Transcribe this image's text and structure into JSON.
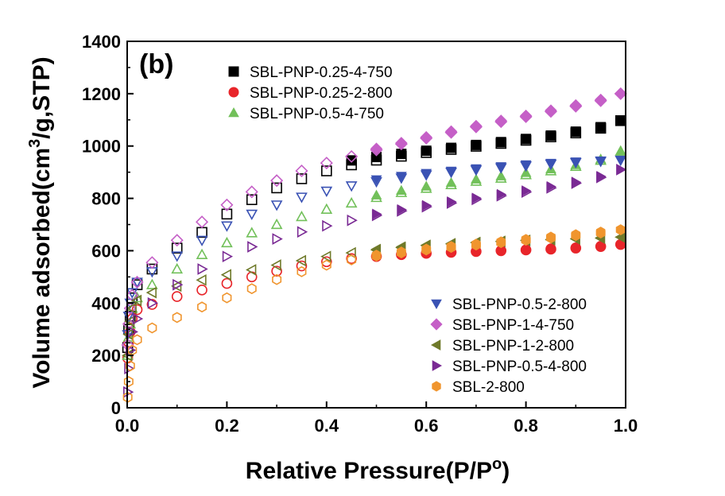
{
  "chart_data": {
    "type": "scatter",
    "panel_label": "(b)",
    "xlabel": "Relative Pressure(P/P°)",
    "xlabel_main": "Relative Pressure(P/P",
    "xlabel_sup": "o",
    "xlabel_tail": ")",
    "ylabel": "Volume adsorbed(cm3/g,STP)",
    "ylabel_main": "Volume adsorbed(cm",
    "ylabel_sup": "3",
    "ylabel_tail": "/g,STP)",
    "xlim": [
      0.0,
      1.0
    ],
    "ylim": [
      0,
      1400
    ],
    "x_ticks": [
      "0.0",
      "0.2",
      "0.4",
      "0.6",
      "0.8",
      "1.0"
    ],
    "y_ticks": [
      "0",
      "200",
      "400",
      "600",
      "800",
      "1000",
      "1200",
      "1400"
    ],
    "grid": false,
    "legend": [
      {
        "placement": "top-left",
        "entries": [
          "SBL-PNP-0.25-4-750",
          "SBL-PNP-0.25-2-800",
          "SBL-PNP-0.5-4-750"
        ]
      },
      {
        "placement": "bottom-right",
        "entries": [
          "SBL-PNP-0.5-2-800",
          "SBL-PNP-1-4-750",
          "SBL-PNP-1-2-800",
          "SBL-PNP-0.5-4-800",
          "SBL-2-800"
        ]
      }
    ],
    "series": [
      {
        "name": "SBL-PNP-0.25-4-750",
        "marker": "square",
        "color": "#000000",
        "adsorption": [
          [
            0.001,
            230
          ],
          [
            0.003,
            300
          ],
          [
            0.006,
            350
          ],
          [
            0.01,
            420
          ],
          [
            0.02,
            470
          ],
          [
            0.05,
            530
          ],
          [
            0.1,
            610
          ],
          [
            0.15,
            670
          ],
          [
            0.2,
            740
          ],
          [
            0.25,
            795
          ],
          [
            0.3,
            840
          ],
          [
            0.35,
            875
          ],
          [
            0.4,
            905
          ],
          [
            0.45,
            928
          ],
          [
            0.5,
            946
          ],
          [
            0.55,
            961
          ],
          [
            0.6,
            975
          ],
          [
            0.65,
            987
          ],
          [
            0.7,
            999
          ],
          [
            0.75,
            1010
          ],
          [
            0.8,
            1022
          ],
          [
            0.85,
            1035
          ],
          [
            0.9,
            1050
          ],
          [
            0.95,
            1068
          ],
          [
            0.99,
            1097
          ]
        ],
        "desorption": [
          [
            0.99,
            1097
          ],
          [
            0.95,
            1072
          ],
          [
            0.9,
            1055
          ],
          [
            0.85,
            1040
          ],
          [
            0.8,
            1027
          ],
          [
            0.75,
            1015
          ],
          [
            0.7,
            1004
          ],
          [
            0.65,
            993
          ],
          [
            0.6,
            982
          ],
          [
            0.55,
            970
          ],
          [
            0.5,
            958
          ],
          [
            0.45,
            945
          ]
        ]
      },
      {
        "name": "SBL-PNP-0.25-2-800",
        "marker": "circle",
        "color": "#e8252a",
        "adsorption": [
          [
            0.001,
            190
          ],
          [
            0.003,
            250
          ],
          [
            0.006,
            290
          ],
          [
            0.01,
            340
          ],
          [
            0.02,
            375
          ],
          [
            0.05,
            395
          ],
          [
            0.1,
            425
          ],
          [
            0.15,
            450
          ],
          [
            0.2,
            475
          ],
          [
            0.25,
            500
          ],
          [
            0.3,
            522
          ],
          [
            0.35,
            542
          ],
          [
            0.4,
            558
          ],
          [
            0.45,
            570
          ],
          [
            0.5,
            578
          ],
          [
            0.55,
            585
          ],
          [
            0.6,
            590
          ],
          [
            0.65,
            594
          ],
          [
            0.7,
            597
          ],
          [
            0.75,
            600
          ],
          [
            0.8,
            603
          ],
          [
            0.85,
            606
          ],
          [
            0.9,
            610
          ],
          [
            0.95,
            616
          ],
          [
            0.99,
            624
          ]
        ],
        "desorption": [
          [
            0.99,
            624
          ],
          [
            0.95,
            618
          ],
          [
            0.9,
            612
          ],
          [
            0.85,
            608
          ],
          [
            0.8,
            604
          ],
          [
            0.75,
            601
          ],
          [
            0.7,
            598
          ],
          [
            0.65,
            595
          ],
          [
            0.6,
            591
          ],
          [
            0.55,
            586
          ],
          [
            0.5,
            580
          ]
        ]
      },
      {
        "name": "SBL-PNP-0.5-4-750",
        "marker": "triangle-up",
        "color": "#72c05a",
        "adsorption": [
          [
            0.001,
            200
          ],
          [
            0.003,
            270
          ],
          [
            0.006,
            320
          ],
          [
            0.01,
            380
          ],
          [
            0.02,
            420
          ],
          [
            0.05,
            470
          ],
          [
            0.1,
            530
          ],
          [
            0.15,
            585
          ],
          [
            0.2,
            630
          ],
          [
            0.25,
            668
          ],
          [
            0.3,
            700
          ],
          [
            0.35,
            730
          ],
          [
            0.4,
            758
          ],
          [
            0.45,
            782
          ],
          [
            0.5,
            803
          ],
          [
            0.55,
            822
          ],
          [
            0.6,
            838
          ],
          [
            0.65,
            852
          ],
          [
            0.7,
            865
          ],
          [
            0.75,
            877
          ],
          [
            0.8,
            890
          ],
          [
            0.85,
            905
          ],
          [
            0.9,
            922
          ],
          [
            0.95,
            945
          ],
          [
            0.99,
            980
          ]
        ],
        "desorption": [
          [
            0.99,
            980
          ],
          [
            0.95,
            950
          ],
          [
            0.9,
            928
          ],
          [
            0.85,
            912
          ],
          [
            0.8,
            898
          ],
          [
            0.75,
            885
          ],
          [
            0.7,
            873
          ],
          [
            0.65,
            860
          ],
          [
            0.6,
            846
          ],
          [
            0.55,
            830
          ],
          [
            0.5,
            812
          ]
        ]
      },
      {
        "name": "SBL-PNP-0.5-2-800",
        "marker": "triangle-down",
        "color": "#3a52b4",
        "adsorption": [
          [
            0.001,
            280
          ],
          [
            0.003,
            350
          ],
          [
            0.006,
            400
          ],
          [
            0.01,
            440
          ],
          [
            0.02,
            480
          ],
          [
            0.05,
            520
          ],
          [
            0.1,
            580
          ],
          [
            0.15,
            640
          ],
          [
            0.2,
            695
          ],
          [
            0.25,
            740
          ],
          [
            0.3,
            775
          ],
          [
            0.35,
            805
          ],
          [
            0.4,
            828
          ],
          [
            0.45,
            848
          ],
          [
            0.5,
            864
          ],
          [
            0.55,
            878
          ],
          [
            0.6,
            890
          ],
          [
            0.65,
            900
          ],
          [
            0.7,
            909
          ],
          [
            0.75,
            917
          ],
          [
            0.8,
            924
          ],
          [
            0.85,
            931
          ],
          [
            0.9,
            937
          ],
          [
            0.95,
            942
          ],
          [
            0.99,
            946
          ]
        ],
        "desorption": [
          [
            0.99,
            946
          ],
          [
            0.95,
            944
          ],
          [
            0.9,
            940
          ],
          [
            0.85,
            935
          ],
          [
            0.8,
            929
          ],
          [
            0.75,
            922
          ],
          [
            0.7,
            914
          ],
          [
            0.65,
            905
          ],
          [
            0.6,
            896
          ],
          [
            0.55,
            885
          ],
          [
            0.5,
            872
          ]
        ]
      },
      {
        "name": "SBL-PNP-1-4-750",
        "marker": "diamond",
        "color": "#c55fc7",
        "adsorption": [
          [
            0.001,
            240
          ],
          [
            0.003,
            320
          ],
          [
            0.006,
            380
          ],
          [
            0.01,
            430
          ],
          [
            0.02,
            480
          ],
          [
            0.05,
            555
          ],
          [
            0.1,
            640
          ],
          [
            0.15,
            710
          ],
          [
            0.2,
            775
          ],
          [
            0.25,
            825
          ],
          [
            0.3,
            868
          ],
          [
            0.35,
            905
          ],
          [
            0.4,
            935
          ],
          [
            0.45,
            960
          ],
          [
            0.5,
            985
          ],
          [
            0.55,
            1008
          ],
          [
            0.6,
            1030
          ],
          [
            0.65,
            1052
          ],
          [
            0.7,
            1073
          ],
          [
            0.75,
            1093
          ],
          [
            0.8,
            1112
          ],
          [
            0.85,
            1132
          ],
          [
            0.9,
            1152
          ],
          [
            0.95,
            1173
          ],
          [
            0.99,
            1200
          ]
        ],
        "desorption": [
          [
            0.99,
            1200
          ],
          [
            0.95,
            1177
          ],
          [
            0.9,
            1156
          ],
          [
            0.85,
            1136
          ],
          [
            0.8,
            1116
          ],
          [
            0.75,
            1097
          ],
          [
            0.7,
            1077
          ],
          [
            0.65,
            1056
          ],
          [
            0.6,
            1034
          ],
          [
            0.55,
            1012
          ],
          [
            0.5,
            990
          ]
        ]
      },
      {
        "name": "SBL-PNP-1-2-800",
        "marker": "triangle-left",
        "color": "#6f7a2a",
        "adsorption": [
          [
            0.001,
            200
          ],
          [
            0.003,
            280
          ],
          [
            0.006,
            330
          ],
          [
            0.01,
            380
          ],
          [
            0.02,
            410
          ],
          [
            0.05,
            440
          ],
          [
            0.1,
            465
          ],
          [
            0.15,
            488
          ],
          [
            0.2,
            508
          ],
          [
            0.25,
            527
          ],
          [
            0.3,
            545
          ],
          [
            0.35,
            562
          ],
          [
            0.4,
            578
          ],
          [
            0.45,
            592
          ],
          [
            0.5,
            603
          ],
          [
            0.55,
            612
          ],
          [
            0.6,
            620
          ],
          [
            0.65,
            626
          ],
          [
            0.7,
            631
          ],
          [
            0.75,
            635
          ],
          [
            0.8,
            639
          ],
          [
            0.85,
            642
          ],
          [
            0.9,
            645
          ],
          [
            0.95,
            648
          ],
          [
            0.99,
            652
          ]
        ],
        "desorption": [
          [
            0.99,
            652
          ],
          [
            0.95,
            650
          ],
          [
            0.9,
            647
          ],
          [
            0.85,
            644
          ],
          [
            0.8,
            641
          ],
          [
            0.75,
            637
          ],
          [
            0.7,
            633
          ],
          [
            0.65,
            628
          ],
          [
            0.6,
            622
          ],
          [
            0.55,
            615
          ],
          [
            0.5,
            606
          ]
        ]
      },
      {
        "name": "SBL-PNP-0.5-4-800",
        "marker": "triangle-right",
        "color": "#7a2a94",
        "adsorption": [
          [
            0.001,
            60
          ],
          [
            0.003,
            150
          ],
          [
            0.006,
            220
          ],
          [
            0.01,
            290
          ],
          [
            0.02,
            340
          ],
          [
            0.05,
            400
          ],
          [
            0.1,
            470
          ],
          [
            0.15,
            530
          ],
          [
            0.2,
            578
          ],
          [
            0.25,
            615
          ],
          [
            0.3,
            645
          ],
          [
            0.35,
            672
          ],
          [
            0.4,
            695
          ],
          [
            0.45,
            716
          ],
          [
            0.5,
            735
          ],
          [
            0.55,
            752
          ],
          [
            0.6,
            768
          ],
          [
            0.65,
            782
          ],
          [
            0.7,
            796
          ],
          [
            0.75,
            810
          ],
          [
            0.8,
            824
          ],
          [
            0.85,
            840
          ],
          [
            0.9,
            858
          ],
          [
            0.95,
            880
          ],
          [
            0.99,
            910
          ]
        ],
        "desorption": [
          [
            0.99,
            910
          ],
          [
            0.95,
            884
          ],
          [
            0.9,
            862
          ],
          [
            0.85,
            845
          ],
          [
            0.8,
            829
          ],
          [
            0.75,
            815
          ],
          [
            0.7,
            801
          ],
          [
            0.65,
            787
          ],
          [
            0.6,
            773
          ],
          [
            0.55,
            757
          ],
          [
            0.5,
            740
          ]
        ]
      },
      {
        "name": "SBL-2-800",
        "marker": "hexagon",
        "color": "#f0952e",
        "adsorption": [
          [
            0.001,
            40
          ],
          [
            0.003,
            100
          ],
          [
            0.006,
            160
          ],
          [
            0.01,
            220
          ],
          [
            0.02,
            260
          ],
          [
            0.05,
            305
          ],
          [
            0.1,
            345
          ],
          [
            0.15,
            385
          ],
          [
            0.2,
            420
          ],
          [
            0.25,
            455
          ],
          [
            0.3,
            490
          ],
          [
            0.35,
            520
          ],
          [
            0.4,
            545
          ],
          [
            0.45,
            565
          ],
          [
            0.5,
            580
          ],
          [
            0.55,
            592
          ],
          [
            0.6,
            603
          ],
          [
            0.65,
            613
          ],
          [
            0.7,
            622
          ],
          [
            0.75,
            631
          ],
          [
            0.8,
            640
          ],
          [
            0.85,
            649
          ],
          [
            0.9,
            658
          ],
          [
            0.95,
            668
          ],
          [
            0.99,
            680
          ]
        ],
        "desorption": [
          [
            0.99,
            680
          ],
          [
            0.95,
            672
          ],
          [
            0.9,
            662
          ],
          [
            0.85,
            653
          ],
          [
            0.8,
            644
          ],
          [
            0.75,
            635
          ],
          [
            0.7,
            626
          ],
          [
            0.65,
            617
          ],
          [
            0.6,
            607
          ],
          [
            0.55,
            596
          ],
          [
            0.5,
            584
          ]
        ]
      }
    ]
  }
}
